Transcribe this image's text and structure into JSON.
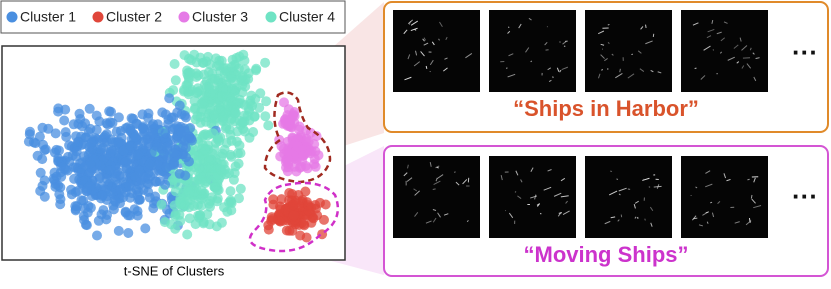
{
  "legend": {
    "items": [
      {
        "name": "Cluster 1",
        "color": "#4a8fe0"
      },
      {
        "name": "Cluster 2",
        "color": "#e0463a"
      },
      {
        "name": "Cluster 3",
        "color": "#e57ae6"
      },
      {
        "name": "Cluster 4",
        "color": "#6fe3c4"
      }
    ]
  },
  "scatter": {
    "caption": "t-SNE of Clusters"
  },
  "panels": [
    {
      "label": "“Ships in Harbor”",
      "color": "#e08a2a",
      "text_color": "#d9532b",
      "ellipsis": "···"
    },
    {
      "label": "“Moving Ships”",
      "color": "#d455d4",
      "text_color": "#cc33cc",
      "ellipsis": "···"
    }
  ]
}
